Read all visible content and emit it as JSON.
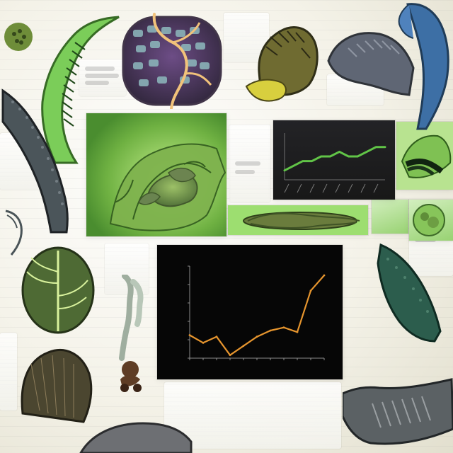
{
  "top_chart": {
    "title": "",
    "chart_data": {
      "type": "line",
      "title": "",
      "x": [
        1,
        2,
        3,
        4,
        5,
        6,
        7,
        8,
        9,
        10,
        11,
        12
      ],
      "series": [
        {
          "values": [
            12,
            13,
            14,
            14,
            15,
            15,
            16,
            15,
            15,
            16,
            17,
            17
          ]
        }
      ],
      "xlabel": "",
      "ylabel": "",
      "xlim": [
        1,
        12
      ],
      "ylim": [
        10,
        20
      ],
      "grid": false,
      "legend": "none"
    }
  },
  "main_chart": {
    "title": "",
    "chart_data": {
      "type": "line",
      "title": "",
      "categories": [
        "",
        "",
        "",
        "",
        "",
        "",
        "",
        "",
        "",
        "",
        ""
      ],
      "series": [
        {
          "values": [
            35,
            30,
            34,
            22,
            28,
            34,
            38,
            40,
            37,
            64,
            74
          ]
        }
      ],
      "xlabel": "",
      "ylabel": "",
      "ylim": [
        20,
        80
      ],
      "grid": false,
      "legend": "none"
    }
  },
  "colors": {
    "accent_green": "#7fcf53",
    "dark_green": "#3d7c25",
    "line_green": "#61c447",
    "line_orange": "#e6952e",
    "chart_bg": "#050505",
    "paper": "#f2f0e4"
  },
  "icons": [
    "leaf-sample-icon",
    "cellular-tissue-icon",
    "bone-fragment-icon",
    "creature-study-icon"
  ]
}
